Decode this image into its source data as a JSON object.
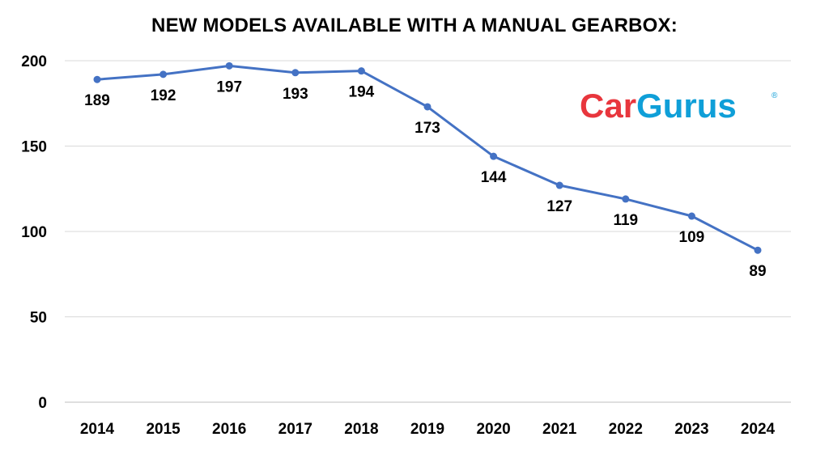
{
  "chart_data": {
    "type": "line",
    "title": "NEW MODELS AVAILABLE WITH A MANUAL GEARBOX:",
    "xlabel": "",
    "ylabel": "",
    "categories": [
      "2014",
      "2015",
      "2016",
      "2017",
      "2018",
      "2019",
      "2020",
      "2021",
      "2022",
      "2023",
      "2024"
    ],
    "series": [
      {
        "values": [
          189,
          192,
          197,
          193,
          194,
          173,
          144,
          127,
          119,
          109,
          89
        ]
      }
    ],
    "ylim": [
      0,
      200
    ],
    "yticks": [
      0,
      50,
      100,
      150,
      200
    ],
    "grid": true,
    "line_color": "#4472C4",
    "data_labels": true
  },
  "logo": {
    "text_car": "Car",
    "text_gurus": "Gurus",
    "registered": "®",
    "color_car": "#e8363d",
    "color_gurus": "#0f9fd8"
  }
}
